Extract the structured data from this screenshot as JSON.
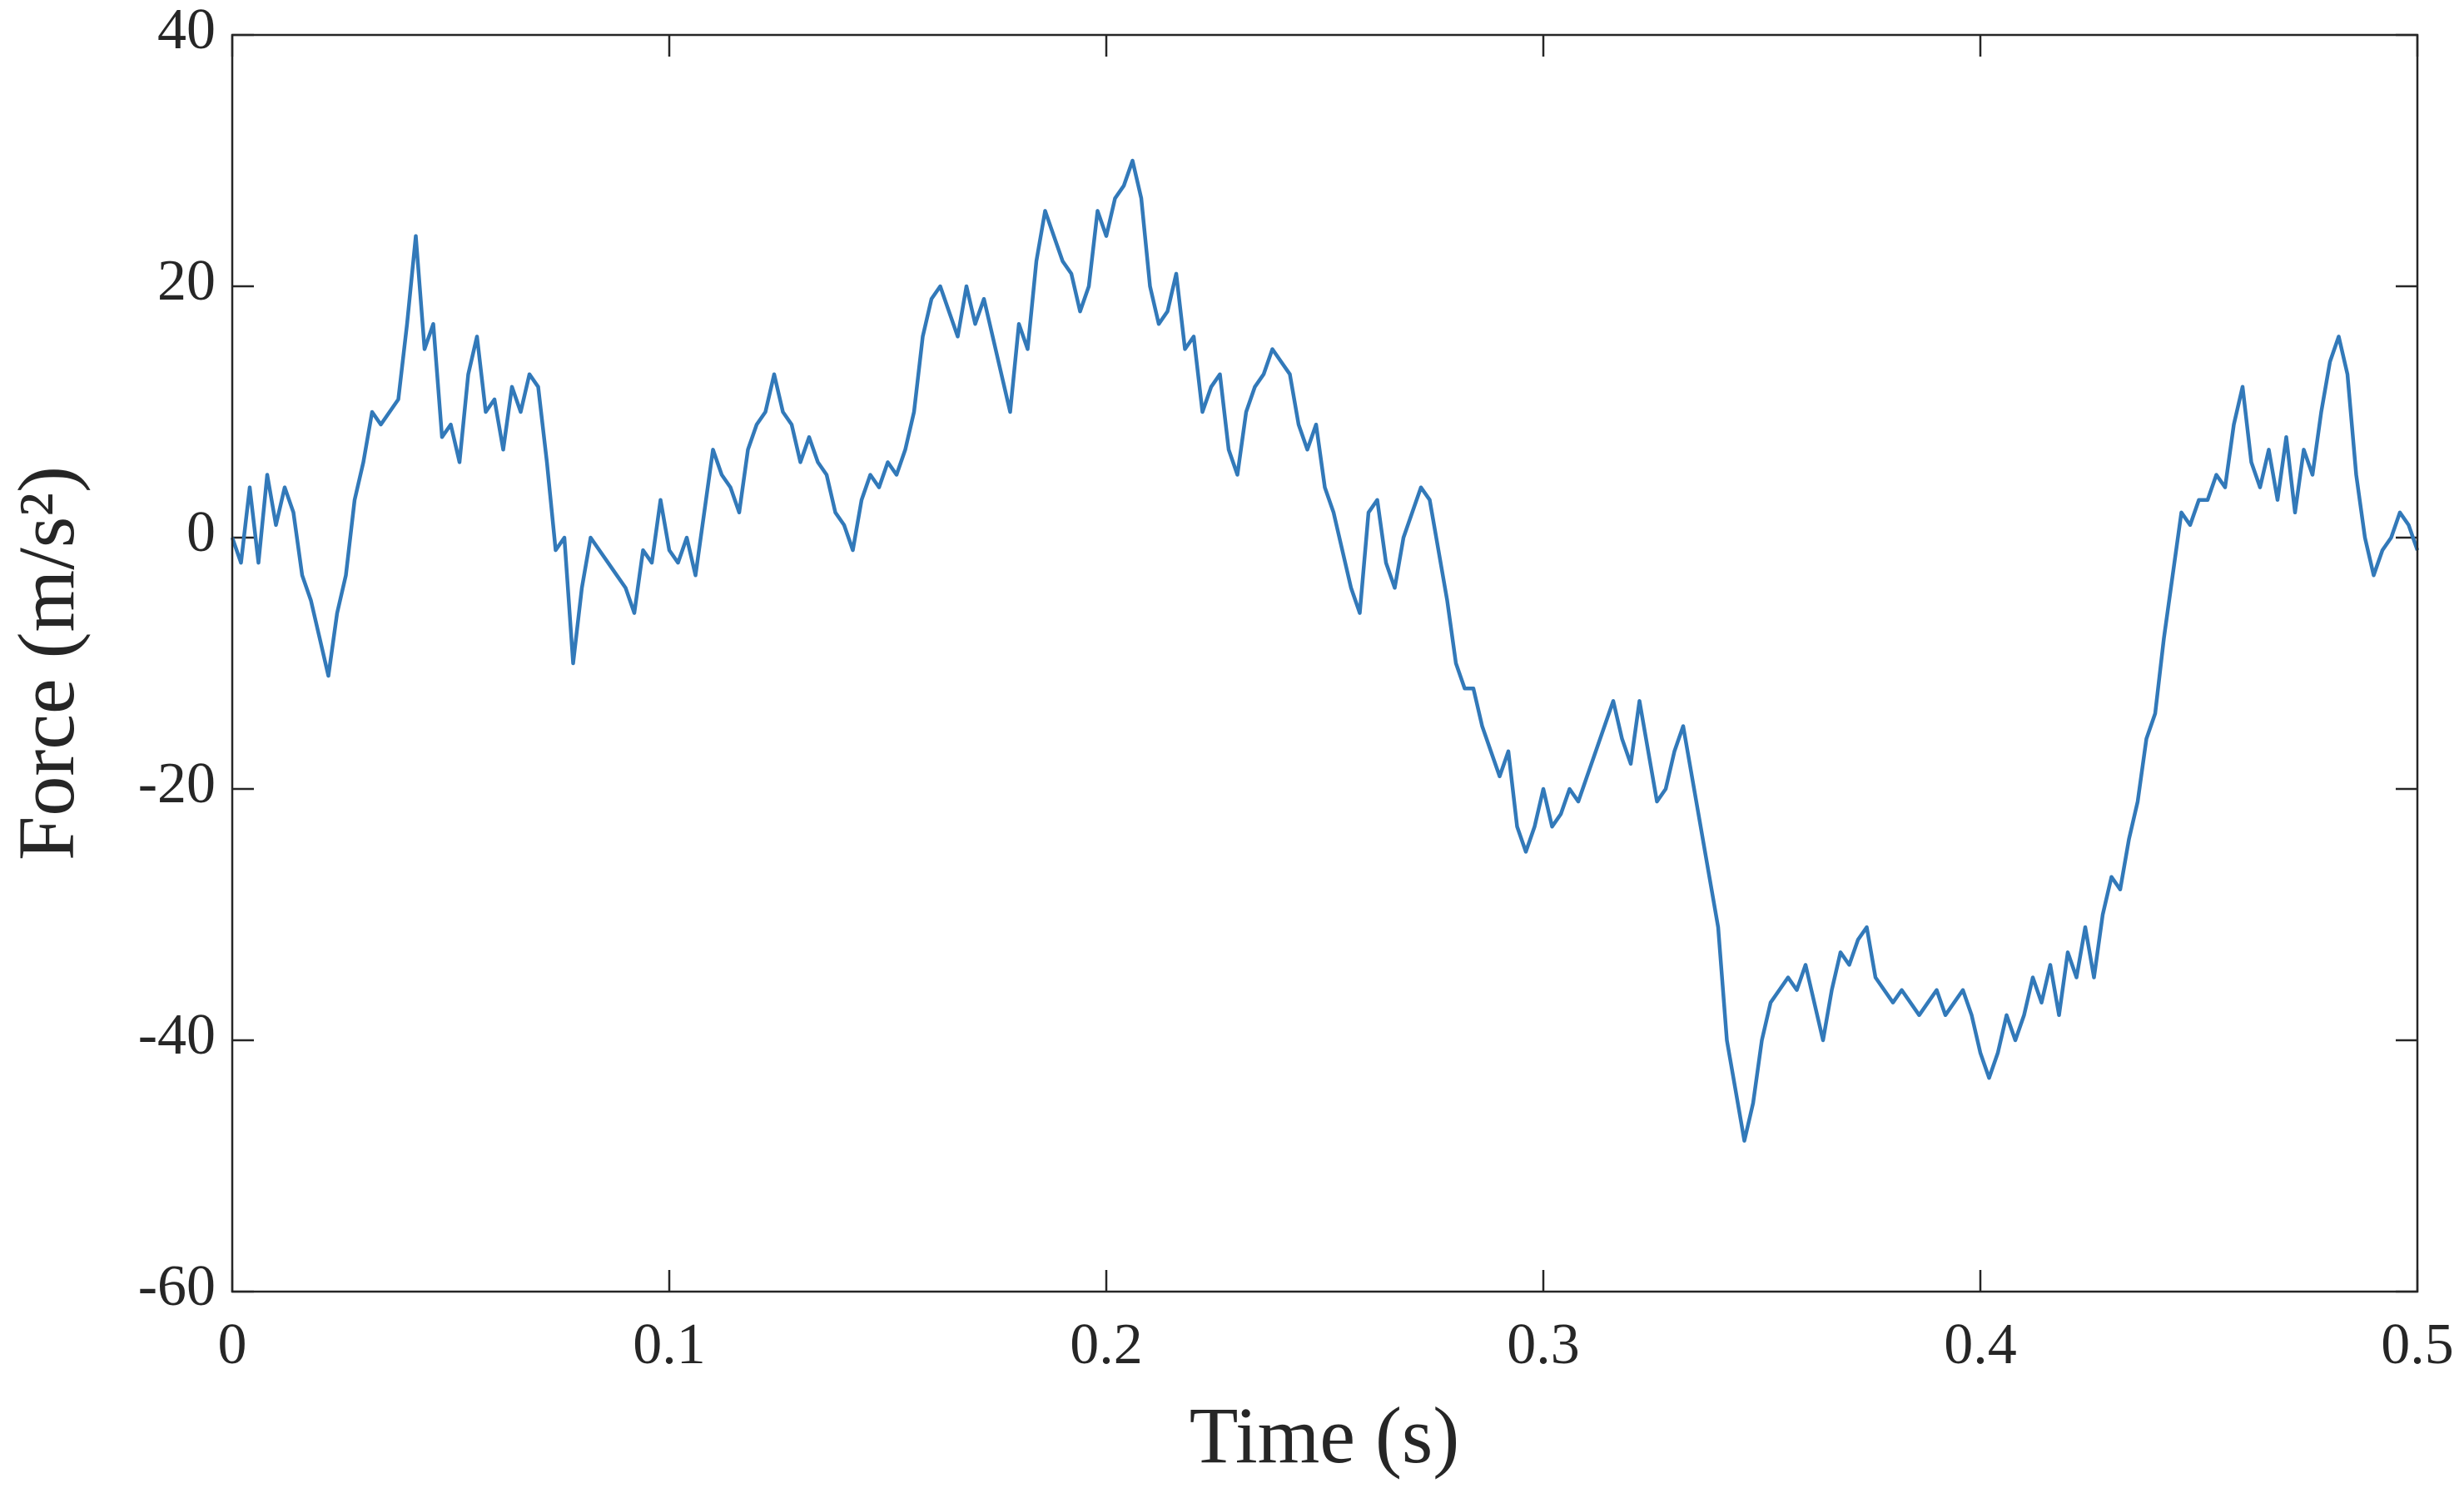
{
  "chart_data": {
    "type": "line",
    "xlabel": "Time (s)",
    "ylabel": "Force (m/s²)",
    "xlim": [
      0,
      0.5
    ],
    "ylim": [
      -60,
      40
    ],
    "xticks": [
      0,
      0.1,
      0.2,
      0.3,
      0.4,
      0.5
    ],
    "yticks": [
      -60,
      -40,
      -20,
      0,
      20,
      40
    ],
    "grid": false,
    "x": [
      0,
      0.002,
      0.004,
      0.006,
      0.008,
      0.01,
      0.012,
      0.014,
      0.016,
      0.018,
      0.02,
      0.022,
      0.024,
      0.026,
      0.028,
      0.03,
      0.032,
      0.034,
      0.036,
      0.038,
      0.04,
      0.042,
      0.044,
      0.046,
      0.048,
      0.05,
      0.052,
      0.054,
      0.056,
      0.058,
      0.06,
      0.062,
      0.064,
      0.066,
      0.068,
      0.07,
      0.072,
      0.074,
      0.076,
      0.078,
      0.08,
      0.082,
      0.084,
      0.086,
      0.088,
      0.09,
      0.092,
      0.094,
      0.096,
      0.098,
      0.1,
      0.102,
      0.104,
      0.106,
      0.108,
      0.11,
      0.112,
      0.114,
      0.116,
      0.118,
      0.12,
      0.122,
      0.124,
      0.126,
      0.128,
      0.13,
      0.132,
      0.134,
      0.136,
      0.138,
      0.14,
      0.142,
      0.144,
      0.146,
      0.148,
      0.15,
      0.152,
      0.154,
      0.156,
      0.158,
      0.16,
      0.162,
      0.164,
      0.166,
      0.168,
      0.17,
      0.172,
      0.174,
      0.176,
      0.178,
      0.18,
      0.182,
      0.184,
      0.186,
      0.188,
      0.19,
      0.192,
      0.194,
      0.196,
      0.198,
      0.2,
      0.202,
      0.204,
      0.206,
      0.208,
      0.21,
      0.212,
      0.214,
      0.216,
      0.218,
      0.22,
      0.222,
      0.224,
      0.226,
      0.228,
      0.23,
      0.232,
      0.234,
      0.236,
      0.238,
      0.24,
      0.242,
      0.244,
      0.246,
      0.248,
      0.25,
      0.252,
      0.254,
      0.256,
      0.258,
      0.26,
      0.262,
      0.264,
      0.266,
      0.268,
      0.27,
      0.272,
      0.274,
      0.276,
      0.278,
      0.28,
      0.282,
      0.284,
      0.286,
      0.288,
      0.29,
      0.292,
      0.294,
      0.296,
      0.298,
      0.3,
      0.302,
      0.304,
      0.306,
      0.308,
      0.31,
      0.312,
      0.314,
      0.316,
      0.318,
      0.32,
      0.322,
      0.324,
      0.326,
      0.328,
      0.33,
      0.332,
      0.334,
      0.336,
      0.338,
      0.34,
      0.342,
      0.344,
      0.346,
      0.348,
      0.35,
      0.352,
      0.354,
      0.356,
      0.358,
      0.36,
      0.362,
      0.364,
      0.366,
      0.368,
      0.37,
      0.372,
      0.374,
      0.376,
      0.378,
      0.38,
      0.382,
      0.384,
      0.386,
      0.388,
      0.39,
      0.392,
      0.394,
      0.396,
      0.398,
      0.4,
      0.402,
      0.404,
      0.406,
      0.408,
      0.41,
      0.412,
      0.414,
      0.416,
      0.418,
      0.42,
      0.422,
      0.424,
      0.426,
      0.428,
      0.43,
      0.432,
      0.434,
      0.436,
      0.438,
      0.44,
      0.442,
      0.444,
      0.446,
      0.448,
      0.45,
      0.452,
      0.454,
      0.456,
      0.458,
      0.46,
      0.462,
      0.464,
      0.466,
      0.468,
      0.47,
      0.472,
      0.474,
      0.476,
      0.478,
      0.48,
      0.482,
      0.484,
      0.486,
      0.488,
      0.49,
      0.492,
      0.494,
      0.496,
      0.498,
      0.5
    ],
    "series": [
      {
        "color": "#3279b9",
        "values": [
          0,
          -2,
          4,
          -2,
          5,
          1,
          4,
          2,
          -3,
          -5,
          -8,
          -11,
          -6,
          -3,
          3,
          6,
          10,
          9,
          10,
          11,
          17,
          24,
          15,
          17,
          8,
          9,
          6,
          13,
          16,
          10,
          11,
          7,
          12,
          10,
          13,
          12,
          6,
          -1,
          0,
          -10,
          -4,
          0,
          -1,
          -2,
          -3,
          -4,
          -6,
          -1,
          -2,
          3,
          -1,
          -2,
          0,
          -3,
          2,
          7,
          5,
          4,
          2,
          7,
          9,
          10,
          13,
          10,
          9,
          6,
          8,
          6,
          5,
          2,
          1,
          -1,
          3,
          5,
          4,
          6,
          5,
          7,
          10,
          16,
          19,
          20,
          18,
          16,
          20,
          17,
          19,
          16,
          13,
          10,
          17,
          15,
          22,
          26,
          24,
          22,
          21,
          18,
          20,
          26,
          24,
          27,
          28,
          30,
          27,
          20,
          17,
          18,
          21,
          15,
          16,
          10,
          12,
          13,
          7,
          5,
          10,
          12,
          13,
          15,
          14,
          13,
          9,
          7,
          9,
          4,
          2,
          -1,
          -4,
          -6,
          2,
          3,
          -2,
          -4,
          0,
          2,
          4,
          3,
          -1,
          -5,
          -10,
          -12,
          -12,
          -15,
          -17,
          -19,
          -17,
          -23,
          -25,
          -23,
          -20,
          -23,
          -22,
          -20,
          -21,
          -19,
          -17,
          -15,
          -13,
          -16,
          -18,
          -13,
          -17,
          -21,
          -20,
          -17,
          -15,
          -19,
          -23,
          -27,
          -31,
          -40,
          -44,
          -48,
          -45,
          -40,
          -37,
          -36,
          -35,
          -36,
          -34,
          -37,
          -40,
          -36,
          -33,
          -34,
          -32,
          -31,
          -35,
          -36,
          -37,
          -36,
          -37,
          -38,
          -37,
          -36,
          -38,
          -37,
          -36,
          -38,
          -41,
          -43,
          -41,
          -38,
          -40,
          -38,
          -35,
          -37,
          -34,
          -38,
          -33,
          -35,
          -31,
          -35,
          -30,
          -27,
          -28,
          -24,
          -21,
          -16,
          -14,
          -8,
          -3,
          2,
          1,
          3,
          3,
          5,
          4,
          9,
          12,
          6,
          4,
          7,
          3,
          8,
          2,
          7,
          5,
          10,
          14,
          16,
          13,
          5,
          0,
          -3,
          -1,
          0,
          2,
          1,
          -1
        ]
      }
    ]
  }
}
